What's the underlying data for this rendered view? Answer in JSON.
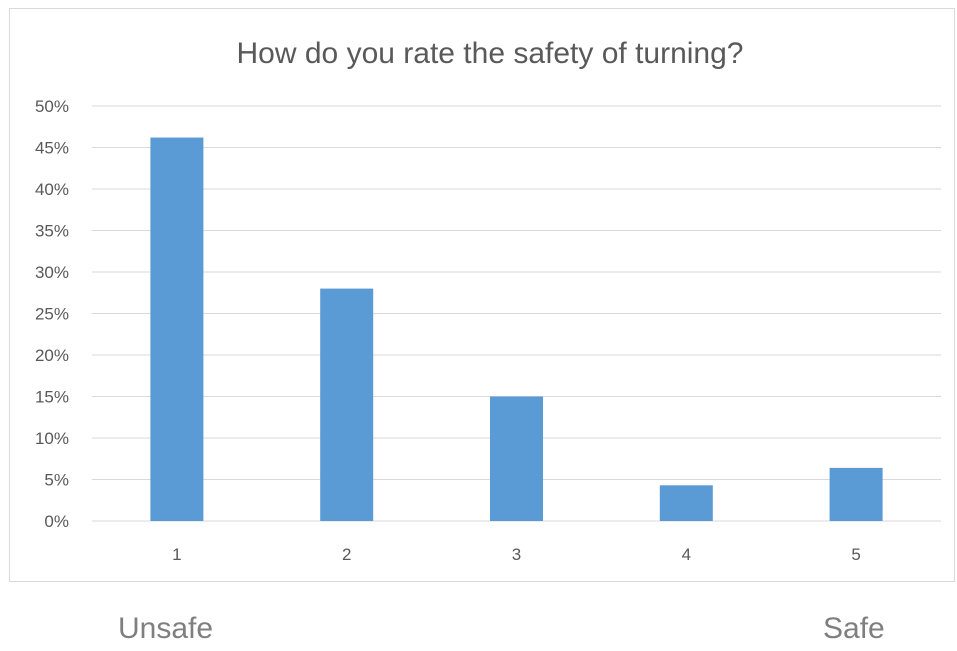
{
  "chart_data": {
    "type": "bar",
    "title": "How do you rate the safety of turning?",
    "categories": [
      "1",
      "2",
      "3",
      "4",
      "5"
    ],
    "values": [
      46.2,
      28.0,
      15.0,
      4.3,
      6.4
    ],
    "ylim": [
      0,
      50
    ],
    "y_ticks": [
      0,
      5,
      10,
      15,
      20,
      25,
      30,
      35,
      40,
      45,
      50
    ],
    "y_tick_format": "percent",
    "grid": true,
    "legend": "none",
    "bar_color": "#5b9bd5"
  },
  "scale_labels": {
    "left": "Unsafe",
    "right": "Safe"
  }
}
